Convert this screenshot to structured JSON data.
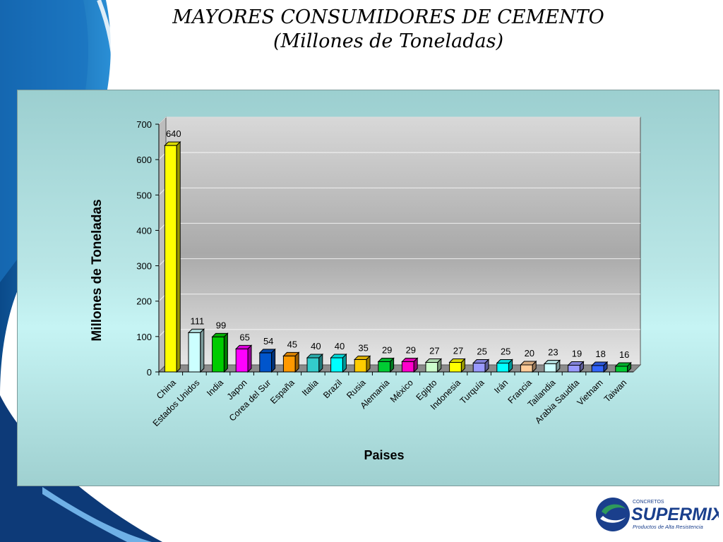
{
  "slide": {
    "title_line1": "MAYORES CONSUMIDORES DE CEMENTO",
    "title_line2": "(Millones de Toneladas)"
  },
  "logo": {
    "small_text": "CONCRETOS",
    "brand": "SUPERMIX",
    "tagline": "Productos de Alta Resistencia",
    "brand_color": "#1a3f8c",
    "accent_color": "#2e9a5c"
  },
  "chart_data": {
    "type": "bar",
    "title": "",
    "xlabel": "Paises",
    "ylabel": "Millones de Toneladas",
    "ylim": [
      0,
      700
    ],
    "yticks": [
      0,
      100,
      200,
      300,
      400,
      500,
      600,
      700
    ],
    "grid": true,
    "three_d": true,
    "categories": [
      "China",
      "Estados Unidos",
      "India",
      "Japon",
      "Corea del Sur",
      "España",
      "Italia",
      "Brazil",
      "Rusia",
      "Alemania",
      "México",
      "Egipto",
      "Indonesia",
      "Turquía",
      "Irán",
      "Francia",
      "Tailandia",
      "Arabia Saudita",
      "Vietnam",
      "Taiwan"
    ],
    "values": [
      640,
      111,
      99,
      65,
      54,
      45,
      40,
      40,
      35,
      29,
      29,
      27,
      27,
      25,
      25,
      20,
      23,
      19,
      18,
      16
    ],
    "colors": [
      "#ffff00",
      "#ccffff",
      "#00cc00",
      "#ff00ff",
      "#0055cc",
      "#ff9900",
      "#33cccc",
      "#00ffff",
      "#ffcc00",
      "#00cc33",
      "#ff00cc",
      "#ccffcc",
      "#ffff00",
      "#9999ff",
      "#00ffff",
      "#ffcc99",
      "#ccffff",
      "#9999ff",
      "#3366ff",
      "#00cc33"
    ]
  }
}
